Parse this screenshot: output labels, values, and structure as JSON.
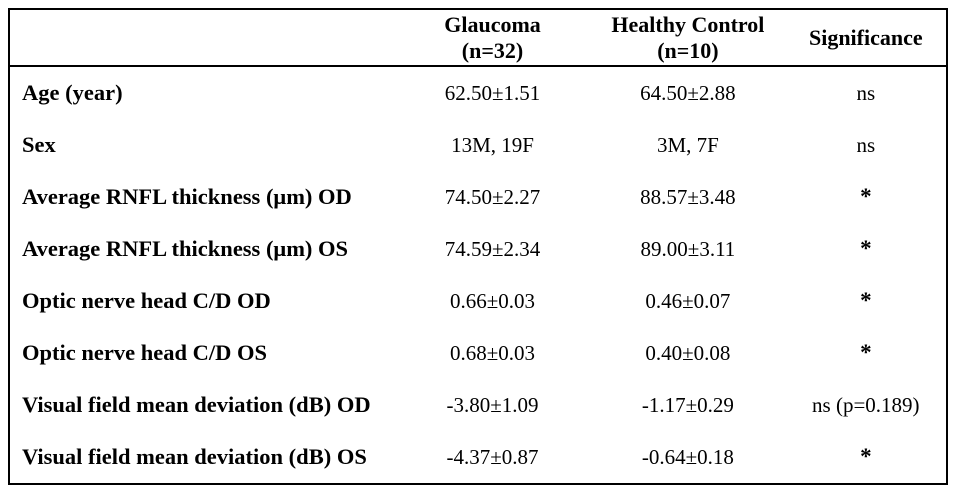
{
  "table": {
    "colors": {
      "border": "#000000",
      "background": "#ffffff",
      "text": "#000000"
    },
    "columns": [
      {
        "label": ""
      },
      {
        "label": "Glaucoma",
        "sublabel": "(n=32)"
      },
      {
        "label": "Healthy Control",
        "sublabel": "(n=10)"
      },
      {
        "label": "Significance"
      }
    ],
    "rows": [
      {
        "label": "Age (year)",
        "glaucoma": "62.50±1.51",
        "control": "64.50±2.88",
        "significance": "ns"
      },
      {
        "label": "Sex",
        "glaucoma": "13M, 19F",
        "control": "3M, 7F",
        "significance": "ns"
      },
      {
        "label": "Average RNFL thickness (μm) OD",
        "glaucoma": "74.50±2.27",
        "control": "88.57±3.48",
        "significance": "*"
      },
      {
        "label": "Average RNFL thickness (μm) OS",
        "glaucoma": "74.59±2.34",
        "control": "89.00±3.11",
        "significance": "*"
      },
      {
        "label": "Optic nerve head C/D OD",
        "glaucoma": "0.66±0.03",
        "control": "0.46±0.07",
        "significance": "*"
      },
      {
        "label": "Optic nerve head C/D OS",
        "glaucoma": "0.68±0.03",
        "control": "0.40±0.08",
        "significance": "*"
      },
      {
        "label": "Visual field mean deviation (dB) OD",
        "glaucoma": "-3.80±1.09",
        "control": "-1.17±0.29",
        "significance": "ns (p=0.189)"
      },
      {
        "label": "Visual field mean deviation (dB) OS",
        "glaucoma": "-4.37±0.87",
        "control": "-0.64±0.18",
        "significance": "*"
      }
    ]
  }
}
